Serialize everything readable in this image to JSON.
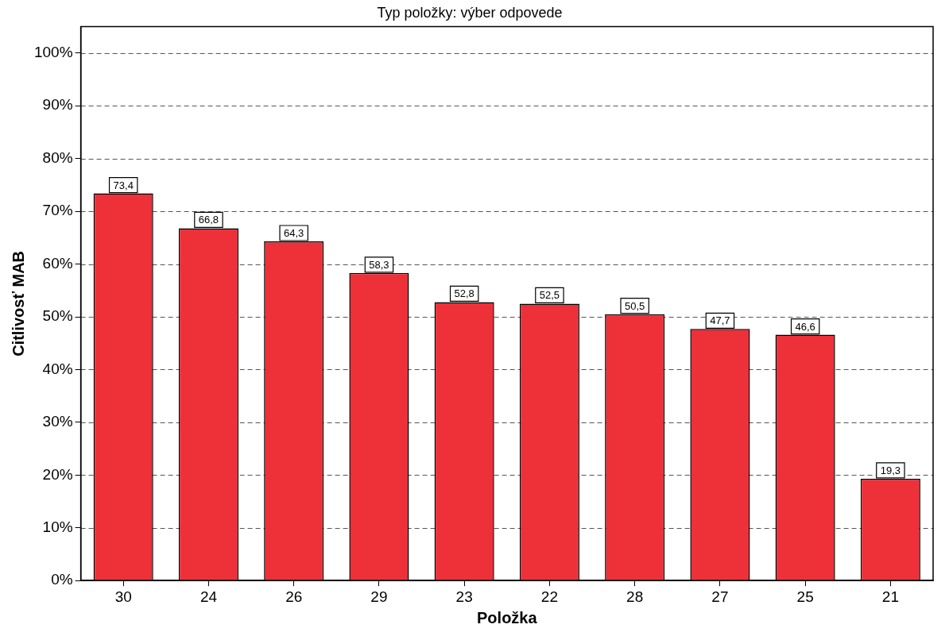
{
  "chart_data": {
    "type": "bar",
    "title": "Typ položky: výber odpovede",
    "xlabel": "Položka",
    "ylabel": "Citlivosť MAB",
    "categories": [
      "30",
      "24",
      "26",
      "29",
      "23",
      "22",
      "28",
      "27",
      "25",
      "21"
    ],
    "values": [
      73.4,
      66.8,
      64.3,
      58.3,
      52.8,
      52.5,
      50.5,
      47.7,
      46.6,
      19.3
    ],
    "value_labels": [
      "73,4",
      "66,8",
      "64,3",
      "58,3",
      "52,8",
      "52,5",
      "50,5",
      "47,7",
      "46,6",
      "19,3"
    ],
    "color": "#ee3039",
    "ylim": [
      0,
      105
    ],
    "yticks": [
      {
        "value": 0,
        "label": "0%"
      },
      {
        "value": 10,
        "label": "10%"
      },
      {
        "value": 20,
        "label": "20%"
      },
      {
        "value": 30,
        "label": "30%"
      },
      {
        "value": 40,
        "label": "40%"
      },
      {
        "value": 50,
        "label": "50%"
      },
      {
        "value": 60,
        "label": "60%"
      },
      {
        "value": 70,
        "label": "70%"
      },
      {
        "value": 80,
        "label": "80%"
      },
      {
        "value": 90,
        "label": "90%"
      },
      {
        "value": 100,
        "label": "100%"
      }
    ],
    "grid": "y",
    "legend": false
  }
}
